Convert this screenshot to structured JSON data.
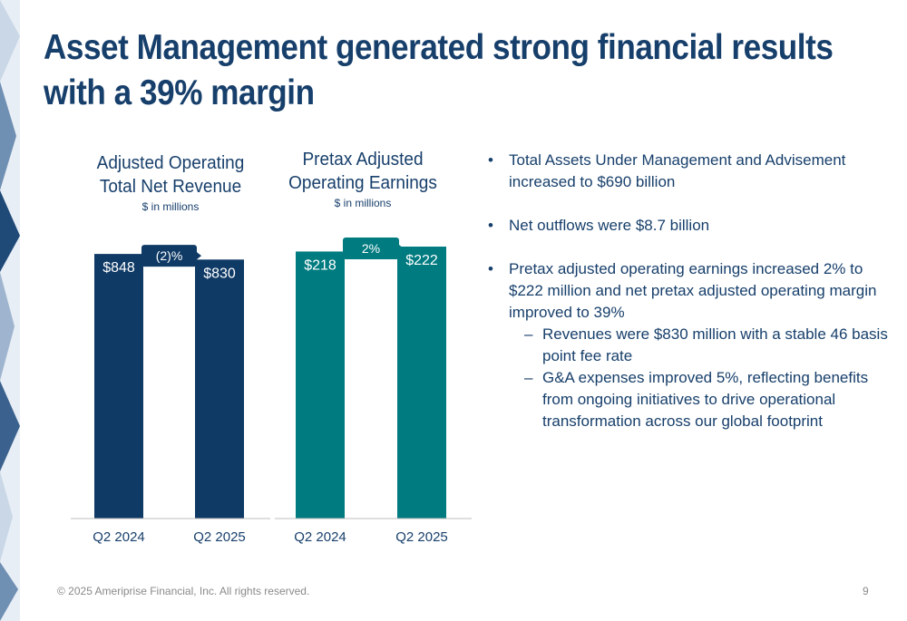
{
  "title_line1": "Asset Management generated strong financial results",
  "title_line2": "with a 39% margin",
  "colors": {
    "navy": "#0f3a66",
    "teal": "#007b80",
    "title": "#173f6b",
    "axis": "#bfbfbf"
  },
  "chart_data": [
    {
      "type": "bar",
      "title_line1": "Adjusted Operating",
      "title_line2": "Total Net Revenue",
      "subtitle": "$ in millions",
      "categories": [
        "Q2 2024",
        "Q2 2025"
      ],
      "values": [
        848,
        830
      ],
      "value_labels": [
        "$848",
        "$830"
      ],
      "change_label": "(2)%",
      "color": "#0f3a66",
      "ylim": [
        0,
        950
      ]
    },
    {
      "type": "bar",
      "title_line1": "Pretax Adjusted",
      "title_line2": "Operating Earnings",
      "subtitle": "$ in millions",
      "categories": [
        "Q2 2024",
        "Q2 2025"
      ],
      "values": [
        218,
        222
      ],
      "value_labels": [
        "$218",
        "$222"
      ],
      "change_label": "2%",
      "color": "#007b80",
      "ylim": [
        0,
        242
      ]
    }
  ],
  "bullets": [
    {
      "text": "Total Assets Under Management and Advisement increased to $690 billion",
      "subs": []
    },
    {
      "text": "Net outflows were $8.7 billion",
      "subs": []
    },
    {
      "text": "Pretax adjusted operating earnings increased 2% to $222 million and net pretax adjusted operating margin improved to 39%",
      "subs": [
        "Revenues were $830 million with a stable 46 basis point fee rate",
        "G&A expenses improved 5%, reflecting benefits from ongoing initiatives to drive operational transformation across our global footprint"
      ]
    }
  ],
  "bullet_marker": "•",
  "sub_marker": "–",
  "footer": "© 2025 Ameriprise Financial, Inc. All rights reserved.",
  "page_number": "9"
}
